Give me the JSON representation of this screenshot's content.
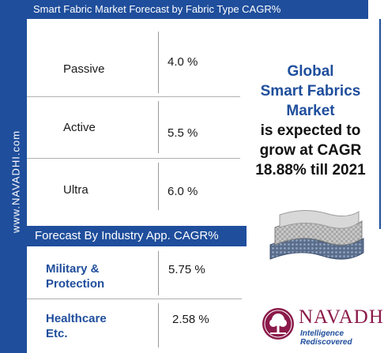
{
  "sidebar": {
    "text": "www.NAVADHI.com"
  },
  "header": {
    "title": "Smart Fabric Market Forecast by Fabric Type CAGR%"
  },
  "fabric_types": [
    {
      "label": "Passive",
      "value": "4.0 %"
    },
    {
      "label": "Active",
      "value": "5.5 %"
    },
    {
      "label": "Ultra",
      "value": "6.0 %"
    }
  ],
  "industry_section": {
    "title": "Forecast By Industry App. CAGR%"
  },
  "industry_apps": [
    {
      "label_line1": "Military &",
      "label_line2": "Protection",
      "value": "5.75 %"
    },
    {
      "label_line1": "Healthcare",
      "label_line2": "Etc.",
      "value": "2.58 %"
    }
  ],
  "headline": {
    "line1": "Global",
    "line2": "Smart Fabrics",
    "line3": "Market",
    "line4": "is expected to",
    "line5": "grow at CAGR",
    "line6": "18.88% till 2021"
  },
  "logo": {
    "name": "NAVADHI",
    "tagline": "Intelligence Rediscovered"
  },
  "colors": {
    "brand_blue": "#1f4e9c",
    "logo_maroon": "#8b1a4a"
  }
}
